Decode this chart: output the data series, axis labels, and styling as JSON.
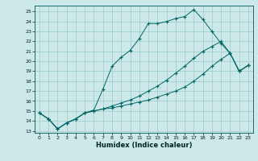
{
  "xlabel": "Humidex (Indice chaleur)",
  "bg_color": "#cce8e8",
  "grid_color": "#99cccc",
  "line_color": "#006666",
  "xlim": [
    -0.5,
    23.5
  ],
  "ylim": [
    12.8,
    25.6
  ],
  "xticks": [
    0,
    1,
    2,
    3,
    4,
    5,
    6,
    7,
    8,
    9,
    10,
    11,
    12,
    13,
    14,
    15,
    16,
    17,
    18,
    19,
    20,
    21,
    22,
    23
  ],
  "yticks": [
    13,
    14,
    15,
    16,
    17,
    18,
    19,
    20,
    21,
    22,
    23,
    24,
    25
  ],
  "line1_x": [
    0,
    1,
    2,
    3,
    4,
    5,
    6,
    7,
    8,
    9,
    10,
    11,
    12,
    13,
    14,
    15,
    16,
    17,
    18,
    19,
    20,
    21,
    22,
    23
  ],
  "line1_y": [
    14.8,
    14.2,
    13.2,
    13.8,
    14.2,
    14.8,
    15.1,
    17.2,
    19.5,
    20.4,
    21.1,
    22.3,
    23.8,
    23.8,
    24.0,
    24.3,
    24.5,
    25.2,
    24.2,
    23.0,
    21.8,
    20.8,
    19.0,
    19.6
  ],
  "line2_x": [
    0,
    1,
    2,
    3,
    4,
    5,
    6,
    7,
    8,
    9,
    10,
    11,
    12,
    13,
    14,
    15,
    16,
    17,
    18,
    19,
    20,
    21,
    22,
    23
  ],
  "line2_y": [
    14.8,
    14.2,
    13.2,
    13.8,
    14.2,
    14.8,
    15.0,
    15.2,
    15.5,
    15.8,
    16.1,
    16.5,
    17.0,
    17.5,
    18.1,
    18.8,
    19.5,
    20.3,
    21.0,
    21.5,
    22.0,
    20.8,
    19.0,
    19.6
  ],
  "line3_x": [
    0,
    1,
    2,
    3,
    4,
    5,
    6,
    7,
    8,
    9,
    10,
    11,
    12,
    13,
    14,
    15,
    16,
    17,
    18,
    19,
    20,
    21,
    22,
    23
  ],
  "line3_y": [
    14.8,
    14.2,
    13.2,
    13.8,
    14.2,
    14.8,
    15.0,
    15.2,
    15.3,
    15.5,
    15.7,
    15.9,
    16.1,
    16.4,
    16.7,
    17.0,
    17.4,
    18.0,
    18.7,
    19.5,
    20.2,
    20.8,
    19.0,
    19.6
  ]
}
